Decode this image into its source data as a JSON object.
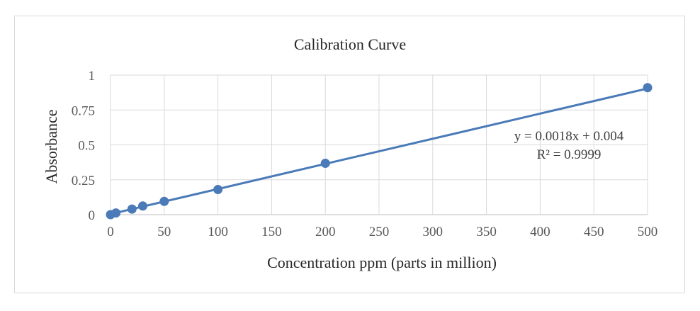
{
  "chart_data": {
    "type": "scatter",
    "title": "Calibration Curve",
    "xlabel": "Concentration ppm (parts in million)",
    "ylabel": "Absorbance",
    "x_categories": [
      "0",
      "50",
      "100",
      "150",
      "200",
      "250",
      "300",
      "350",
      "400",
      "450",
      "500"
    ],
    "xlim": [
      0,
      500
    ],
    "ylim": [
      0,
      1
    ],
    "yticks": [
      "0",
      "0.25",
      "0.5",
      "0.75",
      "1"
    ],
    "ytick_values": [
      0,
      0.25,
      0.5,
      0.75,
      1
    ],
    "grid": true,
    "series": [
      {
        "x": [
          0,
          5,
          20,
          30,
          50,
          100,
          200,
          500
        ],
        "y": [
          0.0,
          0.012,
          0.04,
          0.062,
          0.095,
          0.18,
          0.368,
          0.91
        ],
        "color": "#4a7ab8"
      }
    ],
    "trendline": {
      "type": "linear",
      "slope": 0.0018,
      "intercept": 0.004,
      "color": "#4a7ab8",
      "equation": "y = 0.0018x + 0.004",
      "r_squared": "R² = 0.9999"
    }
  }
}
